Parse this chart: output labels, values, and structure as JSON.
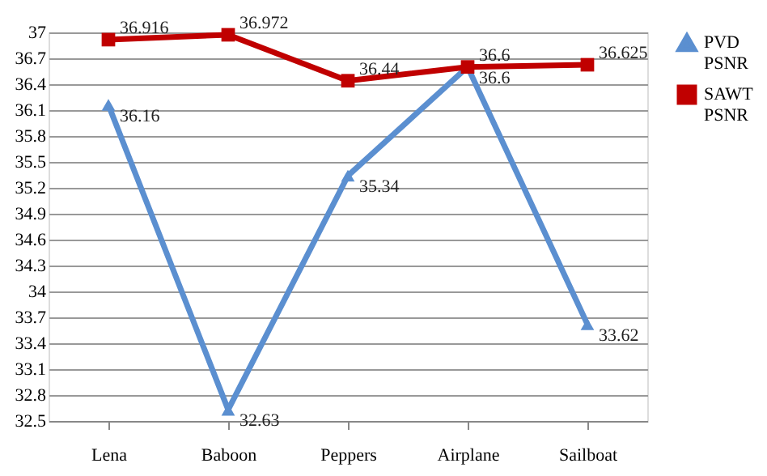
{
  "chart_data": {
    "type": "line",
    "categories": [
      "Lena",
      "Baboon",
      "Peppers",
      "Airplane",
      "Sailboat"
    ],
    "series": [
      {
        "name": "PVD PSNR",
        "color": "#5b8fd0",
        "marker": "triangle",
        "values": [
          36.16,
          32.63,
          35.34,
          36.6,
          33.62
        ]
      },
      {
        "name": "SAWT PSNR",
        "color": "#c00000",
        "marker": "square",
        "values": [
          36.916,
          36.972,
          36.44,
          36.6,
          36.625
        ]
      }
    ],
    "ylim": [
      32.5,
      37
    ],
    "yticks": [
      32.5,
      32.8,
      33.1,
      33.4,
      33.7,
      34,
      34.3,
      34.6,
      34.9,
      35.2,
      35.5,
      35.8,
      36.1,
      36.4,
      36.7,
      37
    ],
    "grid": "y",
    "legend": "right",
    "data_labels": true,
    "line_style": "solid"
  }
}
